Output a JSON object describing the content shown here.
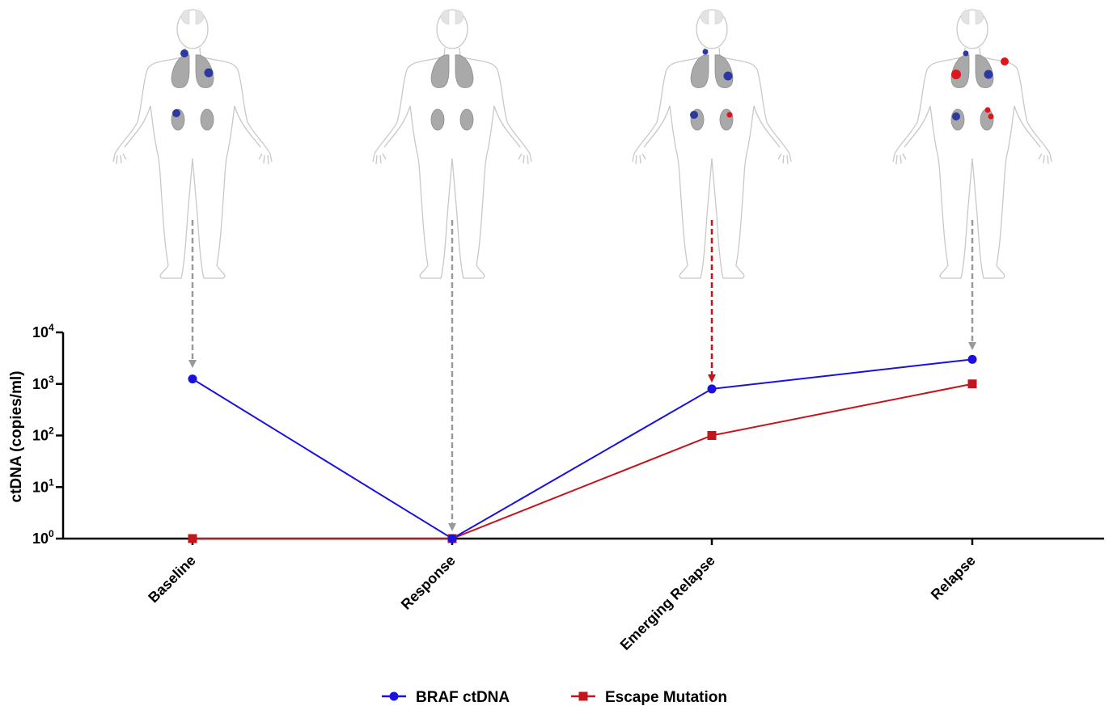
{
  "chart_data": {
    "type": "line",
    "categories": [
      "Baseline",
      "Response",
      "Emerging Relapse",
      "Relapse"
    ],
    "series": [
      {
        "name": "BRAF ctDNA",
        "values": [
          1250,
          1,
          800,
          3000
        ],
        "color": "#1a10e0",
        "marker": "circle"
      },
      {
        "name": "Escape Mutation",
        "values": [
          1,
          1,
          100,
          1000
        ],
        "color": "#c4141c",
        "marker": "square"
      }
    ],
    "ylabel": "ctDNA (copies/ml)",
    "xlabel": "",
    "yscale": "log",
    "ylim": [
      1,
      10000
    ],
    "yticks": [
      {
        "base": "10",
        "exp": "0"
      },
      {
        "base": "10",
        "exp": "1"
      },
      {
        "base": "10",
        "exp": "2"
      },
      {
        "base": "10",
        "exp": "3"
      },
      {
        "base": "10",
        "exp": "4"
      }
    ],
    "grid": false,
    "legend_position": "bottom-center"
  },
  "figures": [
    {
      "category": "Baseline",
      "arrow_color": "#999999",
      "lesions": [
        "blue",
        "blue",
        "blue"
      ]
    },
    {
      "category": "Response",
      "arrow_color": "#999999",
      "lesions": []
    },
    {
      "category": "Emerging Relapse",
      "arrow_color": "#c4141c",
      "lesions": [
        "blue",
        "blue",
        "blue",
        "red"
      ]
    },
    {
      "category": "Relapse",
      "arrow_color": "#999999",
      "lesions": [
        "blue",
        "blue",
        "blue",
        "red",
        "red",
        "red",
        "red"
      ]
    }
  ],
  "icons": [
    "human-body-icon"
  ]
}
